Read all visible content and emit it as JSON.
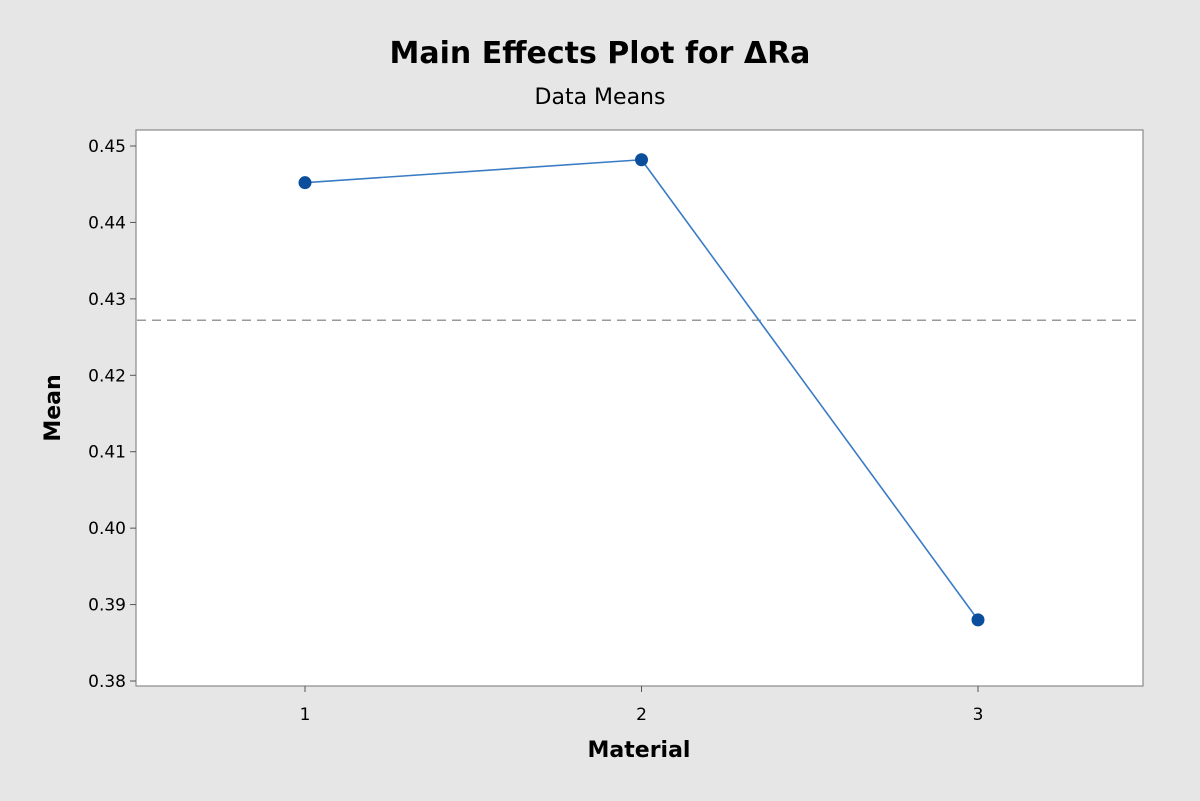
{
  "chart_data": {
    "type": "line",
    "title": "Main Effects Plot for ΔRa",
    "subtitle": "Data Means",
    "xlabel": "Material",
    "ylabel": "Mean",
    "categories": [
      "1",
      "2",
      "3"
    ],
    "values": [
      0.4452,
      0.4482,
      0.388
    ],
    "reference_line": 0.4272,
    "ylim": [
      0.38,
      0.45
    ],
    "yticks": [
      "0.45",
      "0.44",
      "0.43",
      "0.42",
      "0.41",
      "0.40",
      "0.39",
      "0.38"
    ],
    "grid": false,
    "series_color": "#0b4f9c",
    "line_color": "#3a7cc4",
    "reference_line_color": "#9a9a9a",
    "background_color": "#e6e6e6",
    "plot_background_color": "#ffffff"
  }
}
